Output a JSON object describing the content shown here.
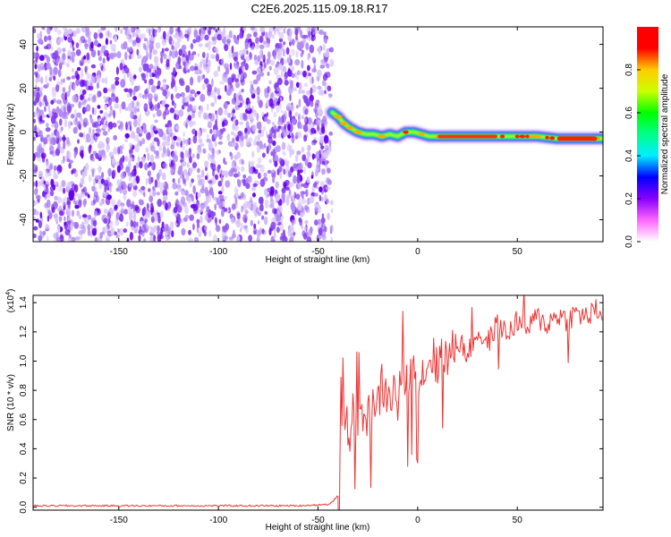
{
  "title": "C2E6.2025.115.09.18.R17",
  "colors": {
    "snr_line": "#ee3333",
    "speckle": [
      "#6600ee",
      "#8844ee",
      "#b088f4",
      "#d8c4fa"
    ],
    "colormap": [
      "#ffffff",
      "#ff66ff",
      "#8800ff",
      "#0000ff",
      "#00eeff",
      "#00ff88",
      "#00ff00",
      "#ccff00",
      "#ffcc00",
      "#ff0000",
      "#ff0000"
    ]
  },
  "chart_data": [
    {
      "type": "heatmap",
      "xlabel": "Height of straight line (km)",
      "ylabel": "Frequency (Hz)",
      "xlim": [
        -193,
        93
      ],
      "ylim": [
        -50,
        48
      ],
      "xticks": [
        -150,
        -100,
        -50,
        0,
        50
      ],
      "xtick_labels": [
        "-150",
        "-100",
        "-50",
        "0",
        "50"
      ],
      "yticks": [
        -40,
        -20,
        0,
        20,
        40
      ],
      "ytick_labels": [
        "-40",
        "-20",
        "0",
        "20",
        "40"
      ],
      "noise_region_x": [
        -193,
        -43
      ],
      "signal_track": {
        "x": [
          -43,
          -40,
          -37,
          -34,
          -30,
          -26,
          -22,
          -18,
          -14,
          -10,
          -6,
          -2,
          2,
          6,
          10,
          20,
          30,
          40,
          50,
          60,
          70,
          80,
          93
        ],
        "y": [
          9,
          7,
          4,
          2,
          0,
          -1,
          -1,
          -2,
          -1,
          -2,
          0,
          0,
          -1,
          -2,
          -2,
          -2,
          -2,
          -2,
          -2,
          -2,
          -3,
          -3,
          -3
        ]
      },
      "colorbar": {
        "label": "Normalized spectral amplitude",
        "range": [
          0,
          1
        ],
        "ticks": [
          0.0,
          0.2,
          0.4,
          0.6,
          0.8
        ],
        "tick_labels": [
          "0.0",
          "0.2",
          "0.4",
          "0.6",
          "0.8"
        ]
      }
    },
    {
      "type": "line",
      "xlabel": "Height of straight line (km)",
      "ylabel": "SNR (10 * v/v)",
      "y_multiplier": "(x10",
      "y_multiplier_exp": "4",
      "y_multiplier_close": ")",
      "xlim": [
        -193,
        93
      ],
      "ylim": [
        -0.02,
        1.45
      ],
      "xticks": [
        -150,
        -100,
        -50,
        0,
        50
      ],
      "xtick_labels": [
        "-150",
        "-100",
        "-50",
        "0",
        "50"
      ],
      "yticks": [
        0.0,
        0.2,
        0.4,
        0.6,
        0.8,
        1.0,
        1.2,
        1.4
      ],
      "ytick_labels": [
        "0.0",
        "0.2",
        "0.4",
        "0.6",
        "0.8",
        "1.0",
        "1.2",
        "1.4"
      ],
      "series": [
        {
          "x": [
            -193,
            -150,
            -100,
            -60,
            -44,
            -40,
            -38,
            -36,
            -34,
            -32,
            -30,
            -28,
            -25,
            -22,
            -20,
            -18,
            -15,
            -12,
            -10,
            -8,
            -5,
            -2,
            0,
            2,
            5,
            8,
            10,
            12,
            15,
            18,
            20,
            25,
            30,
            35,
            40,
            45,
            50,
            55,
            60,
            65,
            70,
            75,
            80,
            85,
            90,
            93
          ],
          "y": [
            0.01,
            0.01,
            0.01,
            0.01,
            0.02,
            0.08,
            0.55,
            0.62,
            0.5,
            0.7,
            0.58,
            0.65,
            0.6,
            0.75,
            0.68,
            0.85,
            0.72,
            0.8,
            0.7,
            0.9,
            0.82,
            0.95,
            0.85,
            0.9,
            0.98,
            1.05,
            0.92,
            1.1,
            1.0,
            1.08,
            1.15,
            1.05,
            1.2,
            1.12,
            1.25,
            1.18,
            1.28,
            1.22,
            1.3,
            1.25,
            1.32,
            1.28,
            1.33,
            1.3,
            1.35,
            1.32
          ]
        }
      ]
    }
  ]
}
